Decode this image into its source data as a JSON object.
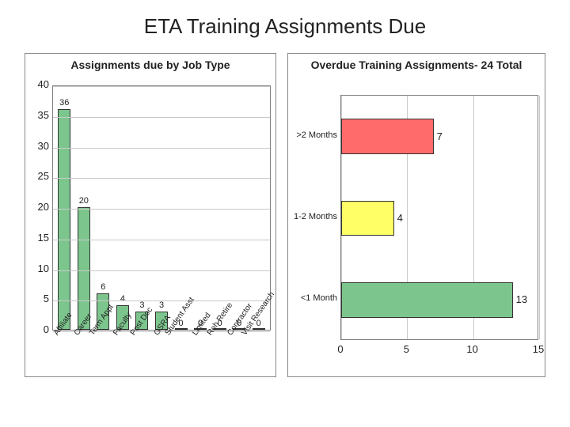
{
  "title": "ETA Training Assignments Due",
  "left_chart": {
    "type": "bar",
    "title": "Assignments due by Job Type",
    "ylim": [
      0,
      40
    ],
    "ytick_step": 5,
    "yticks": [
      0,
      5,
      10,
      15,
      20,
      25,
      30,
      35,
      40
    ],
    "categories": [
      "Affiliate",
      "Career",
      "Term Appt",
      "Faculty",
      "Post Doc",
      "GSRA",
      "Student Asst",
      "Limited",
      "Reh Retire",
      "Contractor",
      "Visit Research"
    ],
    "values": [
      36,
      20,
      6,
      4,
      3,
      3,
      0,
      0,
      0,
      0,
      0
    ],
    "bar_color": "#7cc68d",
    "bar_border": "#333333",
    "background_color": "#ffffff",
    "grid_color": "#c9c9c9",
    "axis_color": "#7f7f7f",
    "label_fontsize": 13,
    "xlabel_fontsize": 10,
    "xlabel_rotation": -55,
    "bar_width": 0.64,
    "title_fontsize": 14
  },
  "right_chart": {
    "type": "bar-horizontal",
    "title": "Overdue Training Assignments- 24 Total",
    "xlim": [
      0,
      15
    ],
    "xtick_step": 5,
    "xticks": [
      0,
      5,
      10,
      15
    ],
    "categories": [
      ">2 Months",
      "1-2 Months",
      "<1 Month"
    ],
    "values": [
      7,
      4,
      13
    ],
    "bar_colors": [
      "#ff6a6a",
      "#ffff66",
      "#7cc68d"
    ],
    "bar_border": "#333333",
    "background_color": "#ffffff",
    "grid_color": "#c9c9c9",
    "axis_color": "#7f7f7f",
    "label_fontsize": 11,
    "title_fontsize": 14,
    "bar_height": 0.43
  }
}
